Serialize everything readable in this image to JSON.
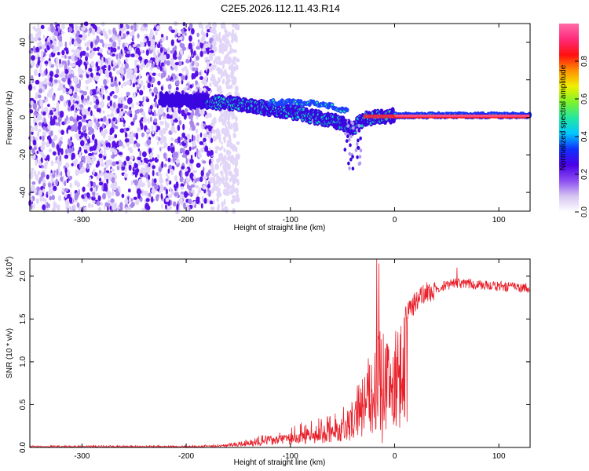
{
  "title": "C2E5.2026.112.11.43.R14",
  "colors": {
    "signal_line": "#e8202a",
    "colormap": [
      "#ffffff",
      "#d6c6f2",
      "#8a4cf0",
      "#4a00e8",
      "#1030ff",
      "#00c8ff",
      "#22e8a0",
      "#7cf22a",
      "#f0f000",
      "#ff9000",
      "#ff1010",
      "#ff2a7a",
      "#ff6aa8"
    ]
  },
  "chart_data": [
    {
      "type": "heatmap",
      "name": "spectrogram",
      "xlabel": "Height of straight line (km)",
      "ylabel": "Frequency (Hz)",
      "xlim": [
        -350,
        130
      ],
      "ylim": [
        -50,
        50
      ],
      "xticks": [
        -300,
        -200,
        -100,
        0,
        100
      ],
      "yticks": [
        -40,
        -20,
        0,
        20,
        40
      ],
      "xtick_labels": [
        "-300",
        "-200",
        "-100",
        "0",
        "100"
      ],
      "ytick_labels": [
        "-40",
        "-20",
        "0",
        "20",
        "40"
      ],
      "noise_region_km": [
        -350,
        -160
      ],
      "ridge_path": {
        "x": [
          -225,
          -200,
          -150,
          -100,
          -75,
          -50,
          -40,
          -30,
          -20,
          0,
          50,
          100,
          130
        ],
        "y": [
          10,
          9,
          7,
          3,
          0,
          -3,
          -6,
          -1,
          0,
          1,
          1,
          1,
          1
        ]
      },
      "upper_branch_path": {
        "x": [
          -120,
          -90,
          -70,
          -60,
          -45
        ],
        "y": [
          8,
          8,
          7,
          6,
          3
        ]
      },
      "colorbar": {
        "label": "Normalized spectral amplitude",
        "range": [
          0,
          1
        ],
        "ticks": [
          0.0,
          0.2,
          0.4,
          0.6,
          0.8
        ],
        "tick_labels": [
          "0.0",
          "0.2",
          "0.4",
          "0.6",
          "0.8"
        ]
      }
    },
    {
      "type": "line",
      "name": "snr",
      "xlabel": "Height of straight line (km)",
      "ylabel": "SNR (10 * v/v)",
      "scale_note": "(x10",
      "scale_exp": "4",
      "scale_close": ")",
      "xlim": [
        -350,
        130
      ],
      "ylim": [
        0,
        2.2
      ],
      "xticks": [
        -300,
        -200,
        -100,
        0,
        100
      ],
      "yticks": [
        0.0,
        0.5,
        1.0,
        1.5,
        2.0
      ],
      "xtick_labels": [
        "-300",
        "-200",
        "-100",
        "0",
        "100"
      ],
      "ytick_labels": [
        "0.0",
        "0.5",
        "1.0",
        "1.5",
        "2.0"
      ],
      "envelope": {
        "x": [
          -350,
          -200,
          -170,
          -150,
          -120,
          -100,
          -80,
          -60,
          -40,
          -30,
          -20,
          -15,
          -10,
          0,
          10,
          20,
          30,
          40,
          50,
          60,
          80,
          100,
          130
        ],
        "y": [
          0.02,
          0.02,
          0.03,
          0.06,
          0.15,
          0.22,
          0.28,
          0.35,
          0.5,
          0.8,
          1.05,
          1.2,
          1.3,
          1.35,
          1.55,
          1.7,
          1.8,
          1.85,
          1.9,
          1.92,
          1.9,
          1.88,
          1.86
        ]
      },
      "spikes": [
        {
          "x": -17,
          "y": 2.2
        },
        {
          "x": -15,
          "y": 2.15
        },
        {
          "x": 60,
          "y": 2.1
        },
        {
          "x": 12,
          "y": 0.3
        },
        {
          "x": -12,
          "y": 0.05
        }
      ]
    }
  ]
}
